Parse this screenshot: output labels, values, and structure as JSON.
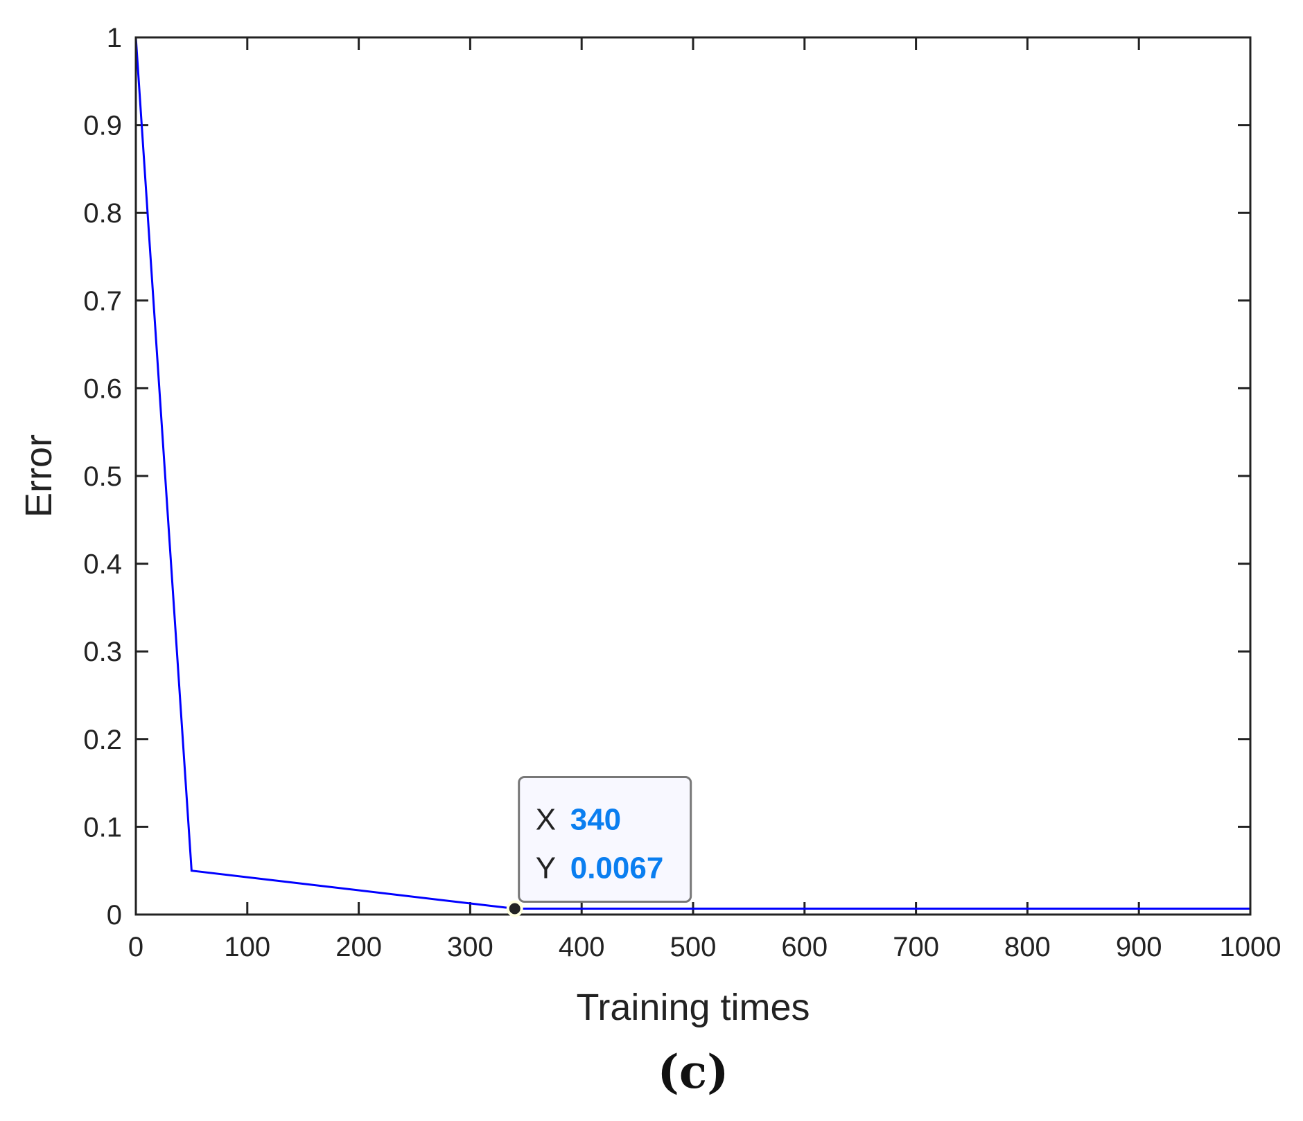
{
  "chart_data": {
    "type": "line",
    "xlabel": "Training times",
    "ylabel": "Error",
    "xlim": [
      0,
      1000
    ],
    "ylim": [
      0,
      1
    ],
    "xticks": [
      0,
      100,
      200,
      300,
      400,
      500,
      600,
      700,
      800,
      900,
      1000
    ],
    "yticks": [
      0,
      0.1,
      0.2,
      0.3,
      0.4,
      0.5,
      0.6,
      0.7,
      0.8,
      0.9,
      1
    ],
    "grid": false,
    "series": [
      {
        "color": "#0000ff",
        "x": [
          0,
          50,
          340,
          1000
        ],
        "y": [
          1.0,
          0.05,
          0.0067,
          0.0067
        ]
      }
    ],
    "datatip": {
      "x_key": "X",
      "x_value": "340",
      "y_key": "Y",
      "y_value": "0.0067",
      "point": [
        340,
        0.0067
      ],
      "value_color": "#0a7ef0"
    },
    "panel_label": "(c)"
  }
}
